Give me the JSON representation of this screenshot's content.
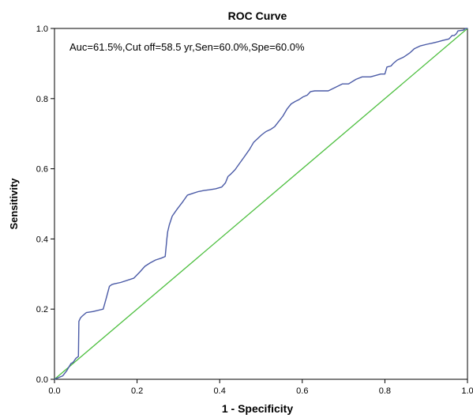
{
  "chart_data": {
    "type": "line",
    "title": "ROC Curve",
    "xlabel": "1 - Specificity",
    "ylabel": "Sensitivity",
    "xlim": [
      0.0,
      1.0
    ],
    "ylim": [
      0.0,
      1.0
    ],
    "xticks": [
      "0.0",
      "0.2",
      "0.4",
      "0.6",
      "0.8",
      "1.0"
    ],
    "yticks": [
      "0.0",
      "0.2",
      "0.4",
      "0.6",
      "0.8",
      "1.0"
    ],
    "annotation": "Auc=61.5%,Cut off=58.5 yr,Sen=60.0%,Spe=60.0%",
    "grid": false,
    "colors": {
      "roc": "#4a5aa6",
      "reference": "#4dbf3f",
      "axis": "#000000"
    },
    "series": [
      {
        "x": [
          0.0,
          0.02,
          0.03,
          0.04,
          0.045,
          0.052,
          0.058,
          0.059,
          0.063,
          0.067,
          0.077,
          0.093,
          0.118,
          0.125,
          0.133,
          0.139,
          0.145,
          0.16,
          0.192,
          0.206,
          0.219,
          0.232,
          0.245,
          0.258,
          0.268,
          0.272,
          0.274,
          0.278,
          0.285,
          0.297,
          0.31,
          0.322,
          0.335,
          0.348,
          0.362,
          0.375,
          0.39,
          0.405,
          0.414,
          0.42,
          0.427,
          0.437,
          0.448,
          0.46,
          0.472,
          0.482,
          0.492,
          0.502,
          0.512,
          0.523,
          0.533,
          0.543,
          0.553,
          0.563,
          0.573,
          0.583,
          0.592,
          0.602,
          0.612,
          0.62,
          0.63,
          0.643,
          0.663,
          0.697,
          0.712,
          0.73,
          0.745,
          0.765,
          0.79,
          0.8,
          0.805,
          0.815,
          0.82,
          0.83,
          0.845,
          0.86,
          0.871,
          0.885,
          0.902,
          0.915,
          0.928,
          0.941,
          0.955,
          0.963,
          0.968,
          0.973,
          0.977,
          0.99,
          0.995,
          1.0
        ],
        "y": [
          0.0,
          0.01,
          0.025,
          0.045,
          0.048,
          0.06,
          0.065,
          0.165,
          0.175,
          0.18,
          0.19,
          0.193,
          0.2,
          0.23,
          0.265,
          0.27,
          0.272,
          0.276,
          0.288,
          0.305,
          0.322,
          0.332,
          0.34,
          0.345,
          0.35,
          0.4,
          0.42,
          0.44,
          0.465,
          0.485,
          0.505,
          0.525,
          0.53,
          0.535,
          0.538,
          0.54,
          0.543,
          0.548,
          0.56,
          0.578,
          0.585,
          0.597,
          0.615,
          0.635,
          0.655,
          0.675,
          0.686,
          0.697,
          0.706,
          0.712,
          0.72,
          0.735,
          0.75,
          0.77,
          0.785,
          0.792,
          0.797,
          0.805,
          0.81,
          0.82,
          0.822,
          0.822,
          0.822,
          0.842,
          0.842,
          0.855,
          0.862,
          0.862,
          0.87,
          0.87,
          0.89,
          0.893,
          0.9,
          0.91,
          0.918,
          0.93,
          0.942,
          0.95,
          0.955,
          0.958,
          0.962,
          0.966,
          0.97,
          0.98,
          0.98,
          0.985,
          0.993,
          0.995,
          1.0,
          1.0
        ]
      },
      {
        "x": [
          0.0,
          1.0
        ],
        "y": [
          0.0,
          1.0
        ]
      }
    ]
  }
}
